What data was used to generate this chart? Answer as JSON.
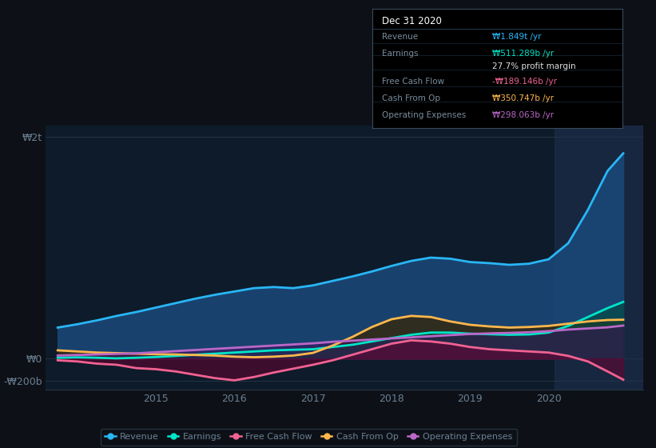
{
  "background_color": "#0d1117",
  "plot_bg_color": "#0d1b2a",
  "grid_color": "#253545",
  "axis_label_color": "#6b7f93",
  "ylabel_2t": "₩2t",
  "ylabel_0": "₩0",
  "ylabel_neg200b": "-₩200b",
  "x_ticks": [
    2015,
    2016,
    2017,
    2018,
    2019,
    2020
  ],
  "x_range": [
    2013.6,
    2021.2
  ],
  "y_range": [
    -280,
    2100
  ],
  "series": {
    "Revenue": {
      "color": "#29b6f6",
      "fill_color": "#1a4a7a",
      "fill_alpha": 0.85,
      "lw": 2.0,
      "data_x": [
        2013.75,
        2014.0,
        2014.25,
        2014.5,
        2014.75,
        2015.0,
        2015.25,
        2015.5,
        2015.75,
        2016.0,
        2016.25,
        2016.5,
        2016.75,
        2017.0,
        2017.25,
        2017.5,
        2017.75,
        2018.0,
        2018.25,
        2018.5,
        2018.75,
        2019.0,
        2019.25,
        2019.5,
        2019.75,
        2020.0,
        2020.25,
        2020.5,
        2020.75,
        2020.95
      ],
      "data_y": [
        280,
        310,
        345,
        385,
        420,
        460,
        500,
        540,
        575,
        605,
        635,
        645,
        635,
        660,
        700,
        740,
        785,
        835,
        880,
        910,
        900,
        870,
        860,
        845,
        855,
        895,
        1040,
        1340,
        1690,
        1849
      ]
    },
    "Earnings": {
      "color": "#00e5c8",
      "fill_color": "#004d40",
      "fill_alpha": 0.6,
      "lw": 2.0,
      "data_x": [
        2013.75,
        2014.0,
        2014.25,
        2014.5,
        2014.75,
        2015.0,
        2015.25,
        2015.5,
        2015.75,
        2016.0,
        2016.25,
        2016.5,
        2016.75,
        2017.0,
        2017.25,
        2017.5,
        2017.75,
        2018.0,
        2018.25,
        2018.5,
        2018.75,
        2019.0,
        2019.25,
        2019.5,
        2019.75,
        2020.0,
        2020.25,
        2020.5,
        2020.75,
        2020.95
      ],
      "data_y": [
        8,
        12,
        8,
        3,
        8,
        15,
        25,
        35,
        45,
        55,
        65,
        75,
        80,
        85,
        105,
        125,
        155,
        185,
        215,
        235,
        235,
        225,
        220,
        215,
        218,
        235,
        295,
        375,
        455,
        511
      ]
    },
    "Free Cash Flow": {
      "color": "#f06292",
      "fill_color": "#6d0030",
      "fill_alpha": 0.5,
      "lw": 2.0,
      "data_x": [
        2013.75,
        2014.0,
        2014.25,
        2014.5,
        2014.75,
        2015.0,
        2015.25,
        2015.5,
        2015.75,
        2016.0,
        2016.25,
        2016.5,
        2016.75,
        2017.0,
        2017.25,
        2017.5,
        2017.75,
        2018.0,
        2018.25,
        2018.5,
        2018.75,
        2019.0,
        2019.25,
        2019.5,
        2019.75,
        2020.0,
        2020.25,
        2020.5,
        2020.75,
        2020.95
      ],
      "data_y": [
        -15,
        -25,
        -45,
        -55,
        -85,
        -95,
        -115,
        -145,
        -175,
        -195,
        -165,
        -125,
        -90,
        -55,
        -15,
        35,
        85,
        135,
        165,
        155,
        135,
        105,
        85,
        75,
        65,
        55,
        25,
        -25,
        -115,
        -189
      ]
    },
    "Cash From Op": {
      "color": "#ffb74d",
      "fill_color": "#3a2500",
      "fill_alpha": 0.7,
      "lw": 2.0,
      "data_x": [
        2013.75,
        2014.0,
        2014.25,
        2014.5,
        2014.75,
        2015.0,
        2015.25,
        2015.5,
        2015.75,
        2016.0,
        2016.25,
        2016.5,
        2016.75,
        2017.0,
        2017.25,
        2017.5,
        2017.75,
        2018.0,
        2018.25,
        2018.5,
        2018.75,
        2019.0,
        2019.25,
        2019.5,
        2019.75,
        2020.0,
        2020.25,
        2020.5,
        2020.75,
        2020.95
      ],
      "data_y": [
        75,
        65,
        55,
        50,
        45,
        40,
        38,
        33,
        28,
        18,
        13,
        18,
        28,
        52,
        118,
        195,
        285,
        355,
        385,
        375,
        335,
        305,
        290,
        280,
        285,
        295,
        315,
        335,
        348,
        351
      ]
    },
    "Operating Expenses": {
      "color": "#ba68c8",
      "fill_color": "#3d0d5c",
      "fill_alpha": 0.5,
      "lw": 2.0,
      "data_x": [
        2013.75,
        2014.0,
        2014.25,
        2014.5,
        2014.75,
        2015.0,
        2015.25,
        2015.5,
        2015.75,
        2016.0,
        2016.25,
        2016.5,
        2016.75,
        2017.0,
        2017.25,
        2017.5,
        2017.75,
        2018.0,
        2018.25,
        2018.5,
        2018.75,
        2019.0,
        2019.25,
        2019.5,
        2019.75,
        2020.0,
        2020.25,
        2020.5,
        2020.75,
        2020.95
      ],
      "data_y": [
        28,
        33,
        38,
        43,
        48,
        58,
        68,
        78,
        88,
        98,
        108,
        118,
        128,
        138,
        152,
        162,
        172,
        182,
        192,
        202,
        212,
        222,
        228,
        232,
        238,
        248,
        262,
        272,
        282,
        298
      ]
    }
  },
  "tooltip": {
    "date": "Dec 31 2020",
    "rows": [
      {
        "label": "Revenue",
        "value": "₩1.849t /yr",
        "value_color": "#29b6f6"
      },
      {
        "label": "Earnings",
        "value": "₩511.289b /yr",
        "value_color": "#00e5c8"
      },
      {
        "label": "",
        "value": "27.7% profit margin",
        "value_color": "#e0e0e0"
      },
      {
        "label": "Free Cash Flow",
        "value": "-₩189.146b /yr",
        "value_color": "#f06292"
      },
      {
        "label": "Cash From Op",
        "value": "₩350.747b /yr",
        "value_color": "#ffb74d"
      },
      {
        "label": "Operating Expenses",
        "value": "₩298.063b /yr",
        "value_color": "#ba68c8"
      }
    ]
  },
  "legend": [
    {
      "label": "Revenue",
      "color": "#29b6f6"
    },
    {
      "label": "Earnings",
      "color": "#00e5c8"
    },
    {
      "label": "Free Cash Flow",
      "color": "#f06292"
    },
    {
      "label": "Cash From Op",
      "color": "#ffb74d"
    },
    {
      "label": "Operating Expenses",
      "color": "#ba68c8"
    }
  ],
  "highlight_x_start": 2020.08
}
